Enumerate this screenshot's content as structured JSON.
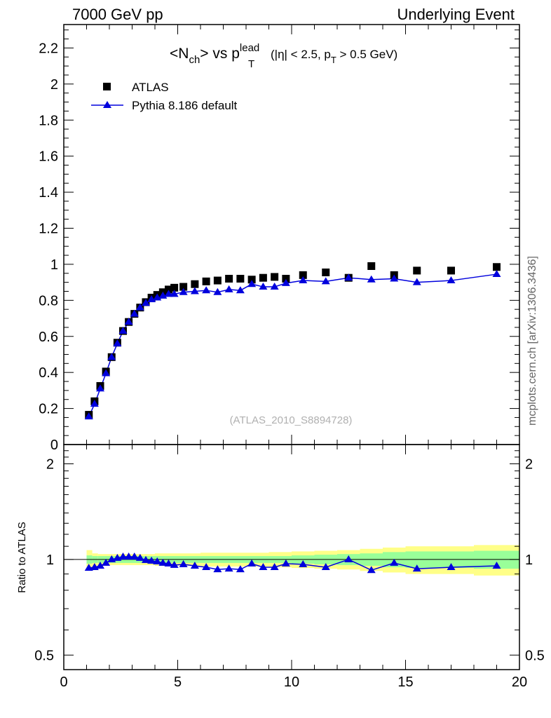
{
  "header": {
    "left": "7000 GeV pp",
    "right": "Underlying Event"
  },
  "side_text": "mcplots.cern.ch [arXiv:1306.3436]",
  "chart_data": {
    "type": "scatter",
    "title_parts": {
      "open": "<N",
      "sub_ch": "ch",
      "mid": "> vs p",
      "sup_lead": "lead",
      "sub_T": "T",
      "cut1": "(|η| < 2.5, p",
      "cut_sub_T": "T",
      "cut2": " > 0.5 GeV)"
    },
    "watermark": "(ATLAS_2010_S8894728)",
    "xlim": [
      0,
      20
    ],
    "x_ticks": [
      "0",
      "5",
      "10",
      "15",
      "20"
    ],
    "main_ylim": [
      0,
      2.33
    ],
    "main_y_ticks": [
      "0",
      "0.2",
      "0.4",
      "0.6",
      "0.8",
      "1",
      "1.2",
      "1.4",
      "1.6",
      "1.8",
      "2",
      "2.2"
    ],
    "ratio_ylabel": "Ratio to ATLAS",
    "ratio_ylim": [
      0.45,
      2.3
    ],
    "ratio_y_ticks": [
      "0.5",
      "1",
      "2"
    ],
    "ratio_scale": "log",
    "legend": [
      "ATLAS",
      "Pythia 8.186 default"
    ],
    "series": [
      {
        "name": "ATLAS",
        "color": "#000000",
        "marker": "square",
        "x": [
          1.1,
          1.35,
          1.6,
          1.85,
          2.1,
          2.35,
          2.6,
          2.85,
          3.1,
          3.35,
          3.6,
          3.85,
          4.1,
          4.35,
          4.6,
          4.85,
          5.25,
          5.75,
          6.25,
          6.75,
          7.25,
          7.75,
          8.25,
          8.75,
          9.25,
          9.75,
          10.5,
          11.5,
          12.5,
          13.5,
          14.5,
          15.5,
          17.0,
          19.0
        ],
        "y": [
          0.165,
          0.24,
          0.325,
          0.405,
          0.485,
          0.565,
          0.63,
          0.68,
          0.725,
          0.76,
          0.79,
          0.815,
          0.83,
          0.845,
          0.86,
          0.87,
          0.875,
          0.89,
          0.905,
          0.91,
          0.92,
          0.92,
          0.915,
          0.925,
          0.93,
          0.92,
          0.94,
          0.955,
          0.925,
          0.99,
          0.94,
          0.965,
          0.965,
          0.985
        ]
      },
      {
        "name": "Pythia 8.186 default",
        "color": "#0000dd",
        "marker": "triangle",
        "x": [
          1.1,
          1.35,
          1.6,
          1.85,
          2.1,
          2.35,
          2.6,
          2.85,
          3.1,
          3.35,
          3.6,
          3.85,
          4.1,
          4.35,
          4.6,
          4.85,
          5.25,
          5.75,
          6.25,
          6.75,
          7.25,
          7.75,
          8.25,
          8.75,
          9.25,
          9.75,
          10.5,
          11.5,
          12.5,
          13.5,
          14.5,
          15.5,
          17.0,
          19.0
        ],
        "y": [
          0.155,
          0.225,
          0.31,
          0.395,
          0.485,
          0.56,
          0.63,
          0.68,
          0.725,
          0.76,
          0.785,
          0.805,
          0.815,
          0.825,
          0.835,
          0.835,
          0.845,
          0.85,
          0.855,
          0.845,
          0.86,
          0.855,
          0.89,
          0.875,
          0.875,
          0.895,
          0.91,
          0.905,
          0.925,
          0.915,
          0.92,
          0.9,
          0.91,
          0.945
        ],
        "ratio": [
          0.94,
          0.945,
          0.955,
          0.975,
          1.0,
          1.01,
          1.02,
          1.02,
          1.02,
          1.01,
          0.995,
          0.99,
          0.985,
          0.975,
          0.97,
          0.96,
          0.965,
          0.955,
          0.945,
          0.93,
          0.935,
          0.93,
          0.97,
          0.945,
          0.945,
          0.97,
          0.965,
          0.945,
          1.0,
          0.925,
          0.975,
          0.935,
          0.945,
          0.955
        ]
      }
    ],
    "bands": {
      "green_color": "#99ff99",
      "yellow_color": "#ffff88",
      "edges": [
        1.0,
        1.25,
        1.5,
        2.0,
        3.0,
        4.0,
        5.0,
        6.0,
        7.0,
        8.0,
        9.0,
        10.0,
        11.0,
        12.0,
        13.0,
        14.0,
        15.0,
        16.0,
        18.0,
        20.0
      ],
      "green_half": [
        0.03,
        0.025,
        0.025,
        0.025,
        0.025,
        0.025,
        0.025,
        0.025,
        0.025,
        0.025,
        0.025,
        0.03,
        0.035,
        0.04,
        0.045,
        0.055,
        0.06,
        0.06,
        0.065
      ],
      "yellow_half": [
        0.07,
        0.045,
        0.04,
        0.04,
        0.04,
        0.045,
        0.045,
        0.05,
        0.05,
        0.05,
        0.055,
        0.06,
        0.065,
        0.07,
        0.08,
        0.09,
        0.1,
        0.1,
        0.11
      ]
    }
  }
}
